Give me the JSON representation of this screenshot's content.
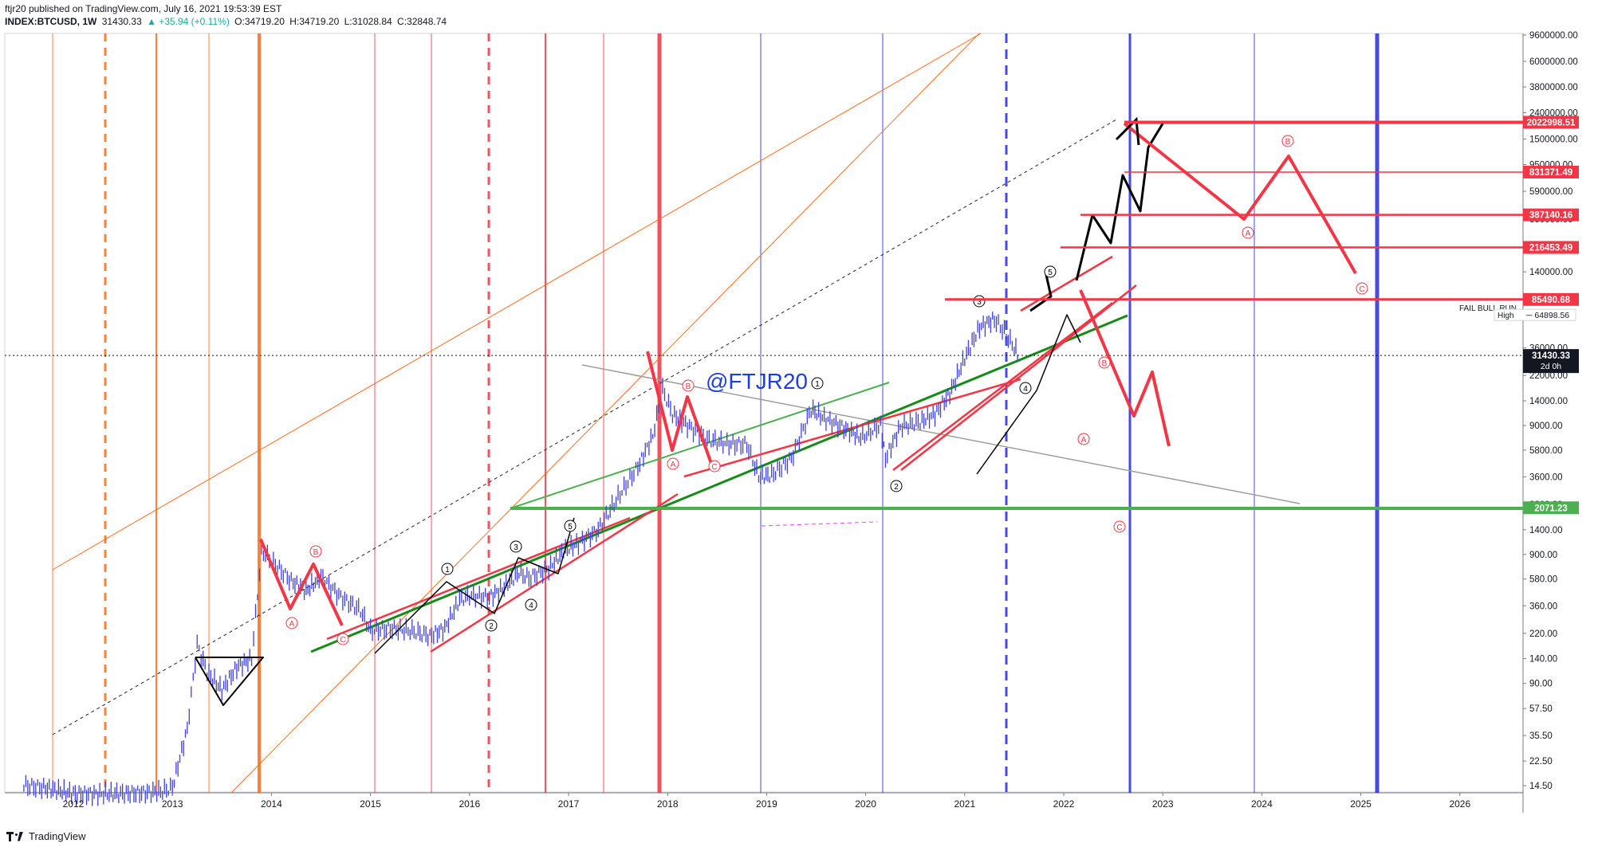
{
  "header": {
    "line1": "ftjr20 published on TradingView.com, July 16, 2021 19:53:39 EST",
    "symbol": "INDEX:BTCUSD, 1W",
    "last": "31430.33",
    "change": "▲ +35.94 (+0.11%)",
    "open": "O:34719.20",
    "high": "H:34719.20",
    "low": "L:31028.84",
    "close": "C:32848.74"
  },
  "footer": {
    "brand": "TradingView"
  },
  "colors": {
    "candles": "#3f3fd9",
    "red": "#f23645",
    "orange": "#ff6a1a",
    "green": "#4caf50",
    "dark_green": "#178a17",
    "blue": "#2a2ae0",
    "grey": "#9e9e9e",
    "black": "#000000",
    "watermark": "#1e3fe0"
  },
  "chart_data": {
    "type": "line",
    "title": "",
    "xlabel": "",
    "ylabel": "",
    "log_scale": true,
    "grid": false,
    "watermark": "@FTJR20",
    "x_ticks": [
      "2012",
      "2013",
      "2014",
      "2015",
      "2016",
      "2017",
      "2018",
      "2019",
      "2020",
      "2021",
      "2022",
      "2023",
      "2024",
      "2025",
      "2026"
    ],
    "y_ticks": [
      "9600000.00",
      "6000000.00",
      "3800000.00",
      "2400000.00",
      "1500000.00",
      "950000.00",
      "590000.00",
      "360000.00",
      "220000.00",
      "140000.00",
      "85000.00",
      "36000.00",
      "22000.00",
      "14000.00",
      "9000.00",
      "5800.00",
      "3600.00",
      "2200.00",
      "1400.00",
      "900.00",
      "580.00",
      "360.00",
      "220.00",
      "140.00",
      "90.00",
      "57.50",
      "35.50",
      "22.50",
      "14.50"
    ],
    "price_labels": [
      {
        "value": "2022998.51",
        "color": "#f23645"
      },
      {
        "value": "831371.49",
        "color": "#f23645"
      },
      {
        "value": "387140.16",
        "color": "#f23645"
      },
      {
        "value": "216453.49",
        "color": "#f23645"
      },
      {
        "value": "85490.68",
        "color": "#f23645"
      },
      {
        "value": "31430.33",
        "color": "#131722",
        "sub": "2d 0h"
      },
      {
        "value": "2071.23",
        "color": "#4caf50"
      }
    ],
    "level_notes": [
      {
        "text": "FAIL BULL RUN"
      },
      {
        "text": "High",
        "value": "64898.56"
      }
    ],
    "series": [
      {
        "name": "BTCUSD",
        "points": [
          [
            "2011.50",
            14.5
          ],
          [
            "2011.70",
            14.0
          ],
          [
            "2012.0",
            12.5
          ],
          [
            "2012.4",
            12.5
          ],
          [
            "2012.9",
            13.0
          ],
          [
            "2013.0",
            14.0
          ],
          [
            "2013.15",
            40
          ],
          [
            "2013.25",
            180
          ],
          [
            "2013.35",
            110
          ],
          [
            "2013.50",
            80
          ],
          [
            "2013.65",
            120
          ],
          [
            "2013.80",
            140
          ],
          [
            "2013.90",
            950
          ],
          [
            "2014.0",
            800
          ],
          [
            "2014.2",
            560
          ],
          [
            "2014.35",
            470
          ],
          [
            "2014.5",
            600
          ],
          [
            "2014.7",
            420
          ],
          [
            "2014.9",
            330
          ],
          [
            "2015.0",
            230
          ],
          [
            "2015.2",
            240
          ],
          [
            "2015.4",
            230
          ],
          [
            "2015.6",
            210
          ],
          [
            "2015.75",
            240
          ],
          [
            "2015.9",
            400
          ],
          [
            "2016.0",
            430
          ],
          [
            "2016.2",
            420
          ],
          [
            "2016.35",
            500
          ],
          [
            "2016.5",
            650
          ],
          [
            "2016.6",
            590
          ],
          [
            "2016.8",
            700
          ],
          [
            "2016.95",
            960
          ],
          [
            "2017.1",
            1100
          ],
          [
            "2017.3",
            1400
          ],
          [
            "2017.5",
            2500
          ],
          [
            "2017.7",
            4300
          ],
          [
            "2017.85",
            7500
          ],
          [
            "2017.95",
            17000
          ],
          [
            "2018.05",
            11000
          ],
          [
            "2018.2",
            9000
          ],
          [
            "2018.4",
            7000
          ],
          [
            "2018.6",
            6500
          ],
          [
            "2018.8",
            6400
          ],
          [
            "2018.92",
            3600
          ],
          [
            "2019.05",
            3700
          ],
          [
            "2019.25",
            5000
          ],
          [
            "2019.45",
            12000
          ],
          [
            "2019.6",
            10000
          ],
          [
            "2019.8",
            8500
          ],
          [
            "2019.95",
            7200
          ],
          [
            "2020.15",
            9000
          ],
          [
            "2020.2",
            5000
          ],
          [
            "2020.35",
            8800
          ],
          [
            "2020.55",
            9600
          ],
          [
            "2020.7",
            11000
          ],
          [
            "2020.85",
            16000
          ],
          [
            "2021.0",
            30000
          ],
          [
            "2021.15",
            52000
          ],
          [
            "2021.3",
            60000
          ],
          [
            "2021.4",
            48000
          ],
          [
            "2021.5",
            36000
          ],
          [
            "2021.55",
            31430.33
          ]
        ]
      }
    ]
  }
}
